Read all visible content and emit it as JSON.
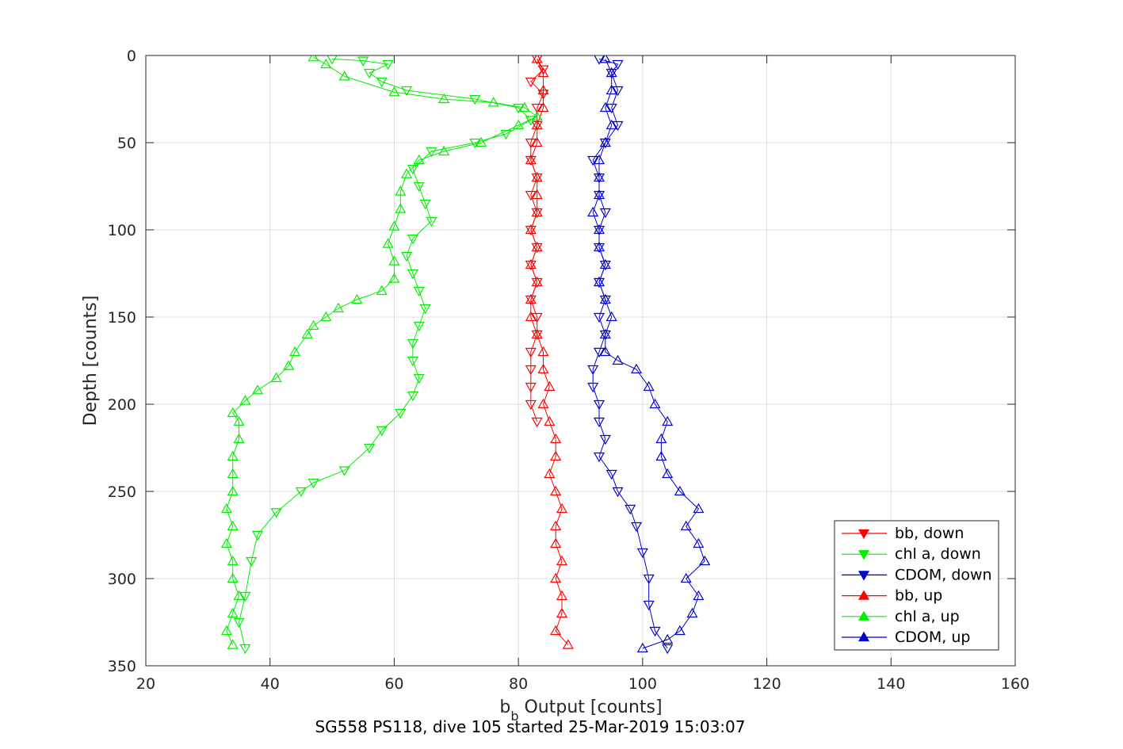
{
  "chart_data": {
    "type": "scatter",
    "title": "",
    "caption": "SG558 PS118, dive 105 started 25-Mar-2019 15:03:07",
    "xlabel": "b",
    "xlabel_sub": "b",
    "xlabel_rest": " Output [counts]",
    "ylabel": "Depth [counts]",
    "xlim": [
      20,
      160
    ],
    "ylim": [
      0,
      350
    ],
    "y_reversed": true,
    "grid": true,
    "legend_placement": "bottom-right",
    "x_ticks": [
      "20",
      "40",
      "60",
      "80",
      "100",
      "120",
      "140",
      "160"
    ],
    "y_ticks": [
      "0",
      "50",
      "100",
      "150",
      "200",
      "250",
      "300",
      "350"
    ],
    "series": [
      {
        "name": "bb, down",
        "color": "#ff0000",
        "marker": "triangle-down",
        "points": [
          [
            83,
            2
          ],
          [
            84,
            8
          ],
          [
            82,
            15
          ],
          [
            84,
            22
          ],
          [
            83,
            30
          ],
          [
            83,
            40
          ],
          [
            82,
            50
          ],
          [
            82,
            60
          ],
          [
            83,
            70
          ],
          [
            82,
            80
          ],
          [
            83,
            90
          ],
          [
            82,
            100
          ],
          [
            83,
            110
          ],
          [
            82,
            120
          ],
          [
            83,
            130
          ],
          [
            82,
            140
          ],
          [
            83,
            150
          ],
          [
            83,
            160
          ],
          [
            82,
            170
          ],
          [
            82,
            180
          ],
          [
            82,
            190
          ],
          [
            82,
            200
          ],
          [
            83,
            210
          ]
        ]
      },
      {
        "name": "chl a, down",
        "color": "#00ee00",
        "marker": "triangle-down",
        "points": [
          [
            50,
            2
          ],
          [
            55,
            3
          ],
          [
            59,
            5
          ],
          [
            56,
            10
          ],
          [
            58,
            15
          ],
          [
            62,
            20
          ],
          [
            73,
            25
          ],
          [
            80,
            30
          ],
          [
            82,
            37
          ],
          [
            78,
            45
          ],
          [
            73,
            50
          ],
          [
            66,
            55
          ],
          [
            63,
            65
          ],
          [
            64,
            75
          ],
          [
            65,
            85
          ],
          [
            66,
            95
          ],
          [
            63,
            105
          ],
          [
            62,
            115
          ],
          [
            63,
            125
          ],
          [
            64,
            135
          ],
          [
            65,
            145
          ],
          [
            64,
            155
          ],
          [
            63,
            165
          ],
          [
            63,
            175
          ],
          [
            64,
            185
          ],
          [
            63,
            195
          ],
          [
            61,
            205
          ],
          [
            58,
            215
          ],
          [
            56,
            225
          ],
          [
            52,
            238
          ],
          [
            47,
            245
          ],
          [
            45,
            250
          ],
          [
            41,
            262
          ],
          [
            38,
            275
          ],
          [
            37,
            290
          ],
          [
            36,
            310
          ],
          [
            35,
            325
          ],
          [
            36,
            340
          ]
        ]
      },
      {
        "name": "CDOM, down",
        "color": "#0000cc",
        "marker": "triangle-down",
        "points": [
          [
            93,
            2
          ],
          [
            96,
            5
          ],
          [
            95,
            10
          ],
          [
            96,
            20
          ],
          [
            95,
            30
          ],
          [
            96,
            40
          ],
          [
            94,
            50
          ],
          [
            92,
            60
          ],
          [
            93,
            70
          ],
          [
            93,
            80
          ],
          [
            94,
            90
          ],
          [
            93,
            100
          ],
          [
            93,
            110
          ],
          [
            94,
            120
          ],
          [
            93,
            130
          ],
          [
            94,
            140
          ],
          [
            93,
            150
          ],
          [
            94,
            160
          ],
          [
            93,
            170
          ],
          [
            92,
            180
          ],
          [
            92,
            190
          ],
          [
            93,
            200
          ],
          [
            93,
            210
          ],
          [
            94,
            220
          ],
          [
            93,
            230
          ],
          [
            95,
            240
          ],
          [
            96,
            250
          ],
          [
            98,
            260
          ],
          [
            99,
            270
          ],
          [
            100,
            285
          ],
          [
            101,
            300
          ],
          [
            101,
            315
          ],
          [
            102,
            330
          ],
          [
            104,
            340
          ]
        ]
      },
      {
        "name": "bb, up",
        "color": "#ff0000",
        "marker": "triangle-up",
        "points": [
          [
            88,
            338
          ],
          [
            86,
            330
          ],
          [
            87,
            320
          ],
          [
            87,
            310
          ],
          [
            86,
            300
          ],
          [
            87,
            290
          ],
          [
            86,
            280
          ],
          [
            86,
            270
          ],
          [
            87,
            260
          ],
          [
            86,
            250
          ],
          [
            85,
            240
          ],
          [
            86,
            230
          ],
          [
            86,
            220
          ],
          [
            85,
            210
          ],
          [
            84,
            200
          ],
          [
            85,
            190
          ],
          [
            84,
            180
          ],
          [
            84,
            170
          ],
          [
            83,
            160
          ],
          [
            82,
            150
          ],
          [
            82,
            140
          ],
          [
            83,
            130
          ],
          [
            82,
            120
          ],
          [
            83,
            110
          ],
          [
            82,
            100
          ],
          [
            83,
            90
          ],
          [
            83,
            80
          ],
          [
            83,
            70
          ],
          [
            82,
            60
          ],
          [
            83,
            50
          ],
          [
            83,
            40
          ],
          [
            84,
            30
          ],
          [
            84,
            20
          ],
          [
            84,
            10
          ],
          [
            83,
            2
          ]
        ]
      },
      {
        "name": "chl a, up",
        "color": "#00ee00",
        "marker": "triangle-up",
        "points": [
          [
            34,
            338
          ],
          [
            33,
            330
          ],
          [
            34,
            320
          ],
          [
            35,
            310
          ],
          [
            34,
            300
          ],
          [
            34,
            290
          ],
          [
            33,
            280
          ],
          [
            34,
            270
          ],
          [
            33,
            260
          ],
          [
            34,
            250
          ],
          [
            34,
            240
          ],
          [
            34,
            230
          ],
          [
            35,
            220
          ],
          [
            35,
            210
          ],
          [
            34,
            205
          ],
          [
            36,
            198
          ],
          [
            38,
            192
          ],
          [
            41,
            185
          ],
          [
            43,
            178
          ],
          [
            44,
            170
          ],
          [
            46,
            160
          ],
          [
            47,
            155
          ],
          [
            49,
            150
          ],
          [
            51,
            145
          ],
          [
            54,
            140
          ],
          [
            58,
            135
          ],
          [
            60,
            128
          ],
          [
            60,
            118
          ],
          [
            59,
            108
          ],
          [
            60,
            98
          ],
          [
            61,
            88
          ],
          [
            61,
            78
          ],
          [
            62,
            68
          ],
          [
            64,
            60
          ],
          [
            68,
            55
          ],
          [
            74,
            50
          ],
          [
            80,
            40
          ],
          [
            83,
            35
          ],
          [
            81,
            30
          ],
          [
            76,
            27
          ],
          [
            68,
            25
          ],
          [
            60,
            21
          ],
          [
            52,
            12
          ],
          [
            49,
            5
          ],
          [
            47,
            1
          ]
        ]
      },
      {
        "name": "CDOM, up",
        "color": "#0000cc",
        "marker": "triangle-up",
        "points": [
          [
            100,
            340
          ],
          [
            104,
            335
          ],
          [
            106,
            330
          ],
          [
            108,
            320
          ],
          [
            109,
            310
          ],
          [
            107,
            300
          ],
          [
            110,
            290
          ],
          [
            109,
            280
          ],
          [
            107,
            270
          ],
          [
            109,
            260
          ],
          [
            106,
            250
          ],
          [
            104,
            240
          ],
          [
            103,
            230
          ],
          [
            103,
            220
          ],
          [
            104,
            210
          ],
          [
            102,
            200
          ],
          [
            101,
            190
          ],
          [
            99,
            180
          ],
          [
            96,
            175
          ],
          [
            94,
            170
          ],
          [
            94,
            160
          ],
          [
            95,
            150
          ],
          [
            94,
            140
          ],
          [
            93,
            130
          ],
          [
            94,
            120
          ],
          [
            93,
            110
          ],
          [
            93,
            100
          ],
          [
            92,
            90
          ],
          [
            93,
            80
          ],
          [
            93,
            70
          ],
          [
            93,
            60
          ],
          [
            94,
            50
          ],
          [
            95,
            40
          ],
          [
            94,
            30
          ],
          [
            95,
            20
          ],
          [
            95,
            10
          ],
          [
            94,
            2
          ]
        ]
      }
    ]
  }
}
